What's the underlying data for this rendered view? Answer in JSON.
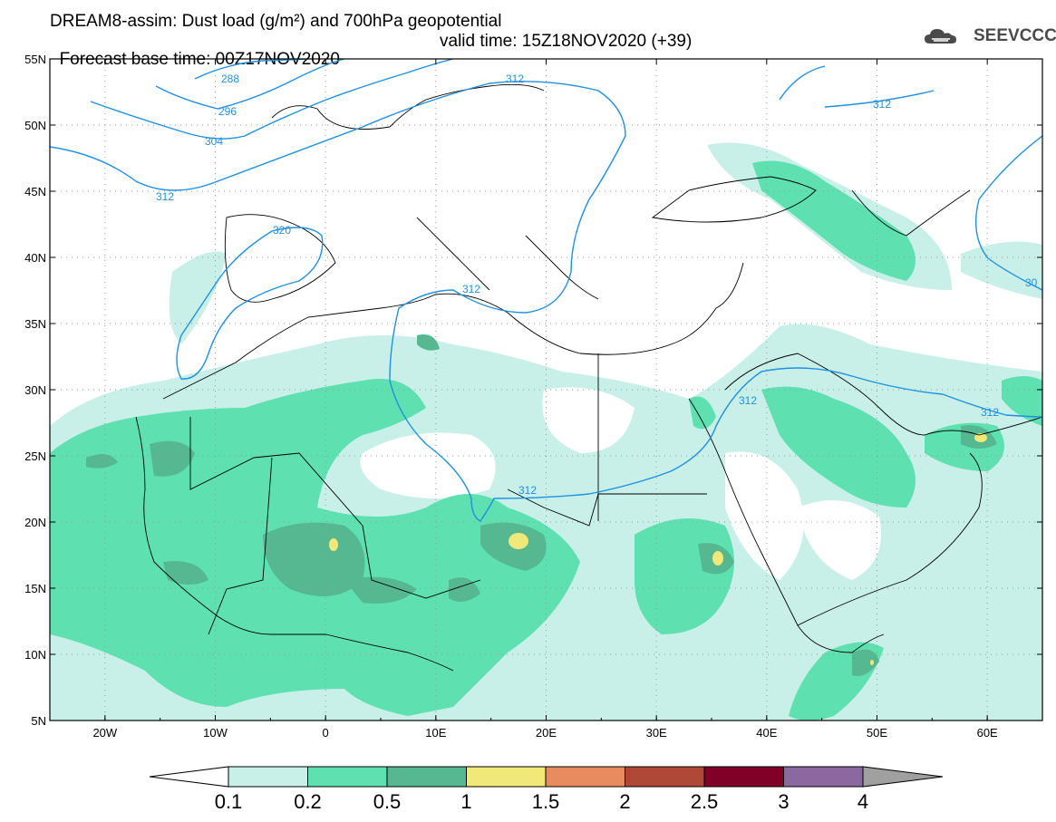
{
  "header": {
    "line1": "DREAM8-assim: Dust load (g/m²) and 700hPa geopotential",
    "line2_base": "Forecast base time: 00Z17NOV2020",
    "line2_valid": "valid time: 15Z18NOV2020 (+39)"
  },
  "logo": {
    "text": "SEEVCCC",
    "icon": "cloud-logo-icon"
  },
  "map": {
    "lon_range": [
      -25,
      65
    ],
    "lat_range": [
      5,
      55
    ],
    "lat_labels": [
      "55N",
      "50N",
      "45N",
      "40N",
      "35N",
      "30N",
      "25N",
      "20N",
      "15N",
      "10N",
      "5N"
    ],
    "lon_labels": [
      "20W",
      "10W",
      "0",
      "10E",
      "20E",
      "30E",
      "40E",
      "50E",
      "60E"
    ],
    "contour_color": "#2090e0",
    "contour_labels": [
      "288",
      "296",
      "304",
      "312",
      "320",
      "312",
      "312",
      "312",
      "312",
      "30"
    ]
  },
  "colorbar": {
    "ticks": [
      "0.1",
      "0.2",
      "0.5",
      "1",
      "1.5",
      "2",
      "2.5",
      "3",
      "4"
    ],
    "colors": [
      "#c8f0e8",
      "#5ee0b0",
      "#55b890",
      "#f0e878",
      "#e88c60",
      "#b04838",
      "#800028",
      "#8c68a0",
      "#a0a0a0"
    ]
  },
  "dust_colors": {
    "light": "#c8f0e8",
    "mid": "#5ee0b0",
    "dark": "#55b890",
    "yellow": "#f0e878"
  }
}
